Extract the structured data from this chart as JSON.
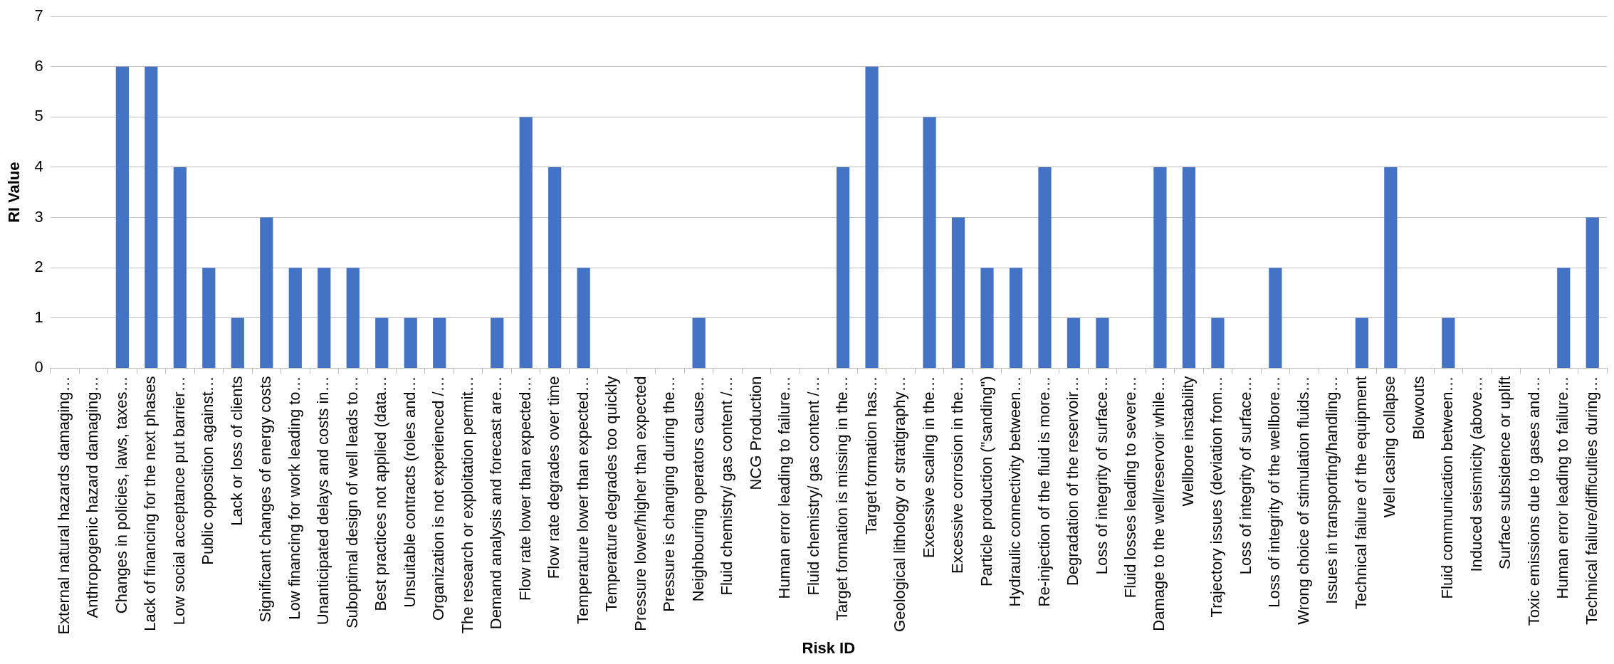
{
  "chart_data": {
    "type": "bar",
    "xlabel": "Risk ID",
    "ylabel": "RI Value",
    "categories": [
      "External natural hazards damaging…",
      "Anthropogenic hazard damaging…",
      "Changes in policies, laws, taxes…",
      "Lack of financing for the next phases",
      "Low social acceptance put barrier…",
      "Public opposition against…",
      "Lack or loss of clients",
      "Significant changes of energy costs",
      "Low financing for work leading to…",
      "Unanticipated delays and costs in…",
      "Suboptimal design of well leads to…",
      "Best practices not applied (data…",
      "Unsuitable contracts (roles and…",
      "Organization is not experienced /…",
      "The research or exploitation permit…",
      "Demand analysis and forecast are…",
      "Flow rate lower than expected…",
      "Flow rate degrades over time",
      "Temperature lower than expected…",
      "Temperature degrades too quickly",
      "Pressure lower/higher than expected",
      "Pressure is changing during the…",
      "Neighbouring operators cause…",
      "Fluid chemistry/ gas content /…",
      "NCG Production",
      "Human error leading to failure…",
      "Fluid chemistry/ gas content /…",
      "Target formation is missing in the…",
      "Target formation has…",
      "Geological lithology or stratigraphy…",
      "Excessive scaling in the…",
      "Excessive corrosion in the…",
      "Particle production (\"sanding\")",
      "Hydraulic connectivity between…",
      "Re-injection of the fluid is more…",
      "Degradation of the reservoir…",
      "Loss of integrity of surface…",
      "Fluid losses leading to severe…",
      "Damage to the well/reservoir while…",
      "Wellbore instability",
      "Trajectory issues (deviation from…",
      "Loss of integrity of surface…",
      "Loss of integrity of the wellbore…",
      "Wrong choice of stimulation fluids…",
      "Issues in transporting/handling…",
      "Technical failure of the equipment",
      "Well casing collapse",
      "Blowouts",
      "Fluid communication between…",
      "Induced seismicity (above…",
      "Surface subsidence or uplift",
      "Toxic emissions due to gases and…",
      "Human error leading to failure…",
      "Technical failure/difficulties during…"
    ],
    "values": [
      0,
      0,
      6,
      6,
      4,
      2,
      1,
      3,
      2,
      2,
      2,
      1,
      1,
      1,
      0,
      1,
      5,
      4,
      2,
      0,
      0,
      0,
      1,
      0,
      0,
      0,
      0,
      4,
      6,
      0,
      5,
      3,
      2,
      2,
      4,
      1,
      1,
      0,
      4,
      4,
      1,
      0,
      2,
      0,
      0,
      1,
      4,
      0,
      1,
      0,
      0,
      0,
      2,
      3
    ],
    "color": "#4472c4",
    "ylim": [
      0,
      7
    ],
    "yticks": [
      0,
      1,
      2,
      3,
      4,
      5,
      6,
      7
    ],
    "grid": "y"
  }
}
